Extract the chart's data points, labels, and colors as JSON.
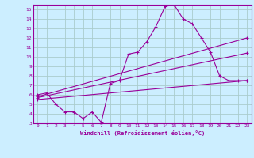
{
  "background_color": "#cceeff",
  "grid_color": "#aacccc",
  "line_color": "#990099",
  "xlim": [
    -0.5,
    23.5
  ],
  "ylim": [
    3,
    15.5
  ],
  "xlabel": "Windchill (Refroidissement éolien,°C)",
  "xticks": [
    0,
    1,
    2,
    3,
    4,
    5,
    6,
    7,
    8,
    9,
    10,
    11,
    12,
    13,
    14,
    15,
    16,
    17,
    18,
    19,
    20,
    21,
    22,
    23
  ],
  "yticks": [
    3,
    4,
    5,
    6,
    7,
    8,
    9,
    10,
    11,
    12,
    13,
    14,
    15
  ],
  "series": [
    {
      "x": [
        0,
        1,
        2,
        3,
        4,
        5,
        6,
        7,
        8,
        9,
        10,
        11,
        12,
        13,
        14,
        15,
        16,
        17,
        18,
        19,
        20,
        21,
        22,
        23
      ],
      "y": [
        6.0,
        6.2,
        5.0,
        4.2,
        4.2,
        3.5,
        4.2,
        3.1,
        7.2,
        7.5,
        10.3,
        10.5,
        11.6,
        13.2,
        15.3,
        15.5,
        14.0,
        13.5,
        12.0,
        10.5,
        8.0,
        7.5,
        7.5,
        7.5
      ]
    },
    {
      "x": [
        0,
        23
      ],
      "y": [
        5.8,
        12.0
      ]
    },
    {
      "x": [
        0,
        23
      ],
      "y": [
        5.7,
        10.4
      ]
    },
    {
      "x": [
        0,
        23
      ],
      "y": [
        5.5,
        7.5
      ]
    }
  ]
}
